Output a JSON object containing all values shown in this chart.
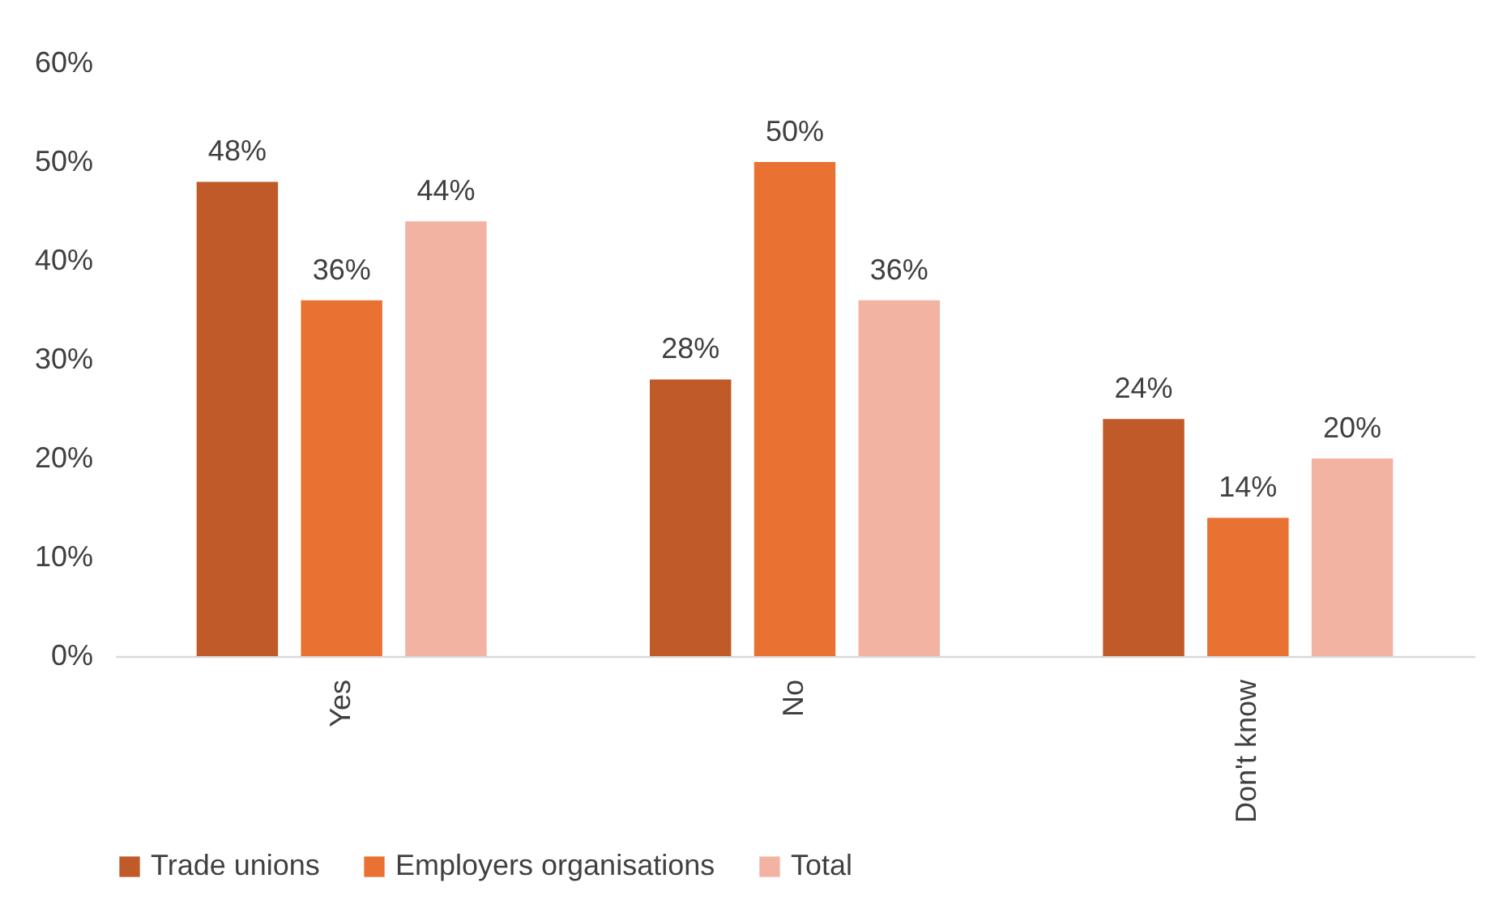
{
  "chart_data": {
    "type": "bar",
    "categories": [
      "Yes",
      "No",
      "Don't know"
    ],
    "series": [
      {
        "name": "Trade unions",
        "color": "#c05a28",
        "values": [
          48,
          28,
          24
        ],
        "value_labels": [
          "48%",
          "28%",
          "24%"
        ]
      },
      {
        "name": "Employers organisations",
        "color": "#e97132",
        "values": [
          36,
          50,
          14
        ],
        "value_labels": [
          "36%",
          "50%",
          "14%"
        ]
      },
      {
        "name": "Total",
        "color": "#f2b3a3",
        "values": [
          44,
          36,
          20
        ],
        "value_labels": [
          "44%",
          "36%",
          "20%"
        ]
      }
    ],
    "ylim": [
      0,
      60
    ],
    "yticks": [
      {
        "value": 0,
        "label": "0%"
      },
      {
        "value": 10,
        "label": "10%"
      },
      {
        "value": 20,
        "label": "20%"
      },
      {
        "value": 30,
        "label": "30%"
      },
      {
        "value": 40,
        "label": "40%"
      },
      {
        "value": 50,
        "label": "50%"
      },
      {
        "value": 60,
        "label": "60%"
      }
    ],
    "grid": false,
    "legend": "bottom"
  }
}
